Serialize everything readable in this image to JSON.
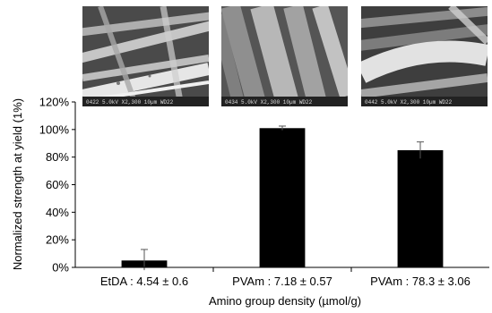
{
  "chart_data": {
    "type": "bar",
    "categories": [
      "EtDA : 4.54 ± 0.6",
      "PVAm : 7.18 ± 0.57",
      "PVAm : 78.3 ± 3.06"
    ],
    "values": [
      0.05,
      1.01,
      0.85
    ],
    "errors": [
      0.08,
      0.015,
      0.06
    ],
    "ylabel": "Normalized strength at yield (1%)",
    "xlabel": "Amino group density (µmol/g)",
    "ylim": [
      0,
      1.2
    ],
    "yticks": [
      0,
      0.2,
      0.4,
      0.6,
      0.8,
      1.0,
      1.2
    ],
    "ytick_labels": [
      "0%",
      "20%",
      "40%",
      "60%",
      "80%",
      "100%",
      "120%"
    ],
    "bar_color": "#000000",
    "grid": false,
    "legend": "none"
  },
  "images": [
    {
      "name": "sem-image-etda",
      "caption": "0422 5.0kV  X2,300  10µm WD22"
    },
    {
      "name": "sem-image-pvam-low",
      "caption": "0434 5.0kV  X2,300  10µm WD22"
    },
    {
      "name": "sem-image-pvam-high",
      "caption": "0442 5.0kV  X2,300  10µm WD22"
    }
  ]
}
